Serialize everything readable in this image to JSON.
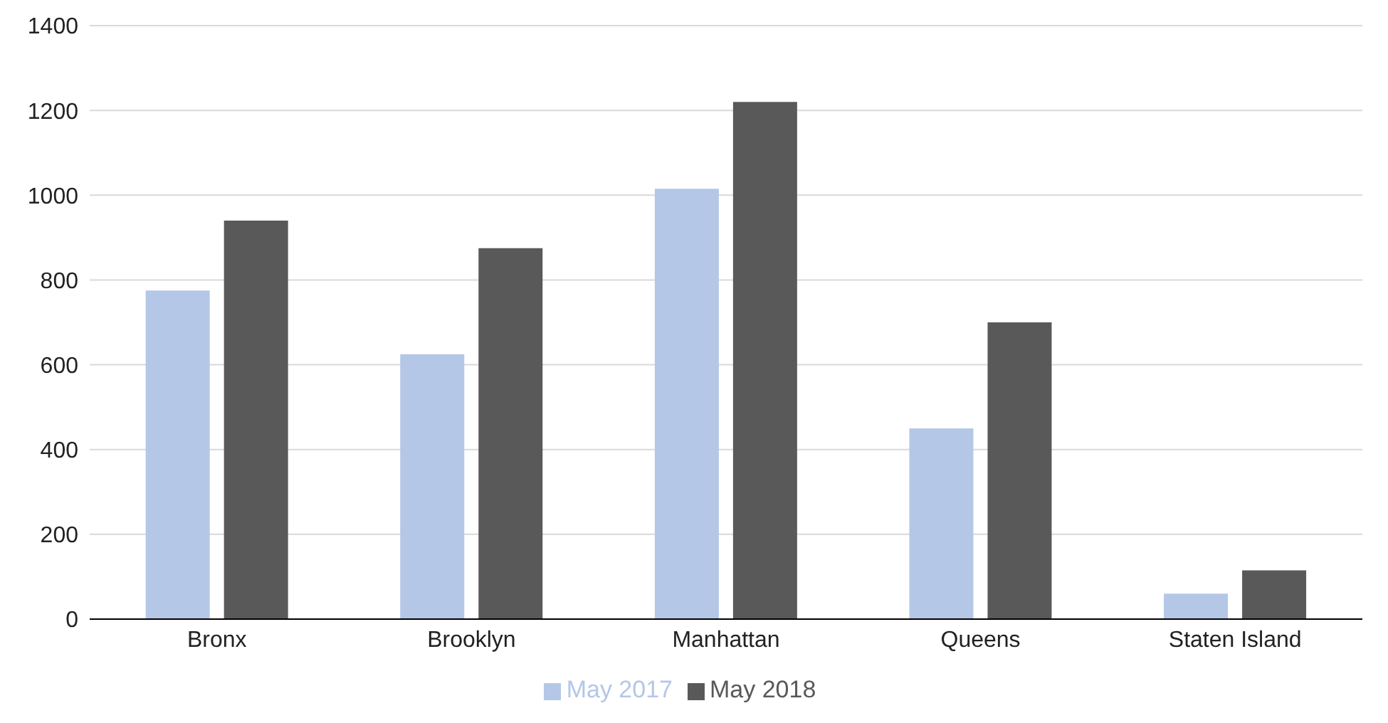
{
  "chart_data": {
    "type": "bar",
    "categories": [
      "Bronx",
      "Brooklyn",
      "Manhattan",
      "Queens",
      "Staten Island"
    ],
    "series": [
      {
        "name": "May 2017",
        "color": "#b4c7e7",
        "values": [
          775,
          625,
          1015,
          450,
          60
        ]
      },
      {
        "name": "May 2018",
        "color": "#595959",
        "values": [
          940,
          875,
          1220,
          700,
          115
        ]
      }
    ],
    "ylim": [
      0,
      1400
    ],
    "yticks": [
      0,
      200,
      400,
      600,
      800,
      1000,
      1200,
      1400
    ],
    "grid": "y",
    "legend": "bottom"
  }
}
